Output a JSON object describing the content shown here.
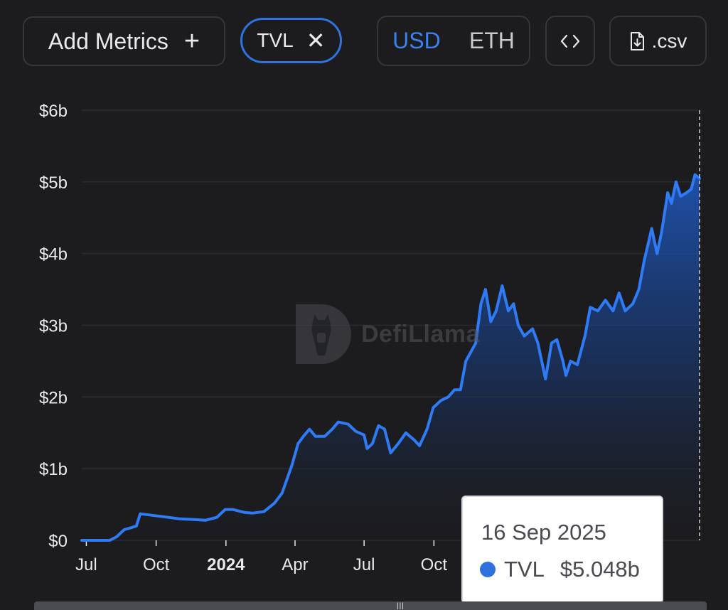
{
  "toolbar": {
    "add_metrics_label": "Add Metrics",
    "add_icon": "plus-icon",
    "tvl_chip_label": "TVL",
    "remove_icon": "close-icon",
    "currency_options": [
      "USD",
      "ETH"
    ],
    "currency_selected": "USD",
    "embed_icon": "code-brackets-icon",
    "csv_label": ".csv",
    "csv_icon": "file-download-icon"
  },
  "watermark": {
    "text": "DefiLlama"
  },
  "tooltip": {
    "date": "16 Sep 2025",
    "series": "TVL",
    "value": "$5.048b"
  },
  "colors": {
    "background": "#1c1c1f",
    "accent": "#3b82f0",
    "line": "#2f7bf5",
    "grid": "#2a2b30"
  },
  "chart_data": {
    "type": "area",
    "title": "",
    "xlabel": "",
    "ylabel": "",
    "ylim": [
      0,
      6
    ],
    "y_unit": "billion USD",
    "y_ticks": [
      {
        "value": 0,
        "label": "$0"
      },
      {
        "value": 1,
        "label": "$1b"
      },
      {
        "value": 2,
        "label": "$2b"
      },
      {
        "value": 3,
        "label": "$3b"
      },
      {
        "value": 4,
        "label": "$4b"
      },
      {
        "value": 5,
        "label": "$5b"
      },
      {
        "value": 6,
        "label": "$6b"
      }
    ],
    "x_range": [
      "2023-06-25",
      "2025-09-16"
    ],
    "x_ticks": [
      {
        "date": "2023-07-01",
        "label": "Jul",
        "bold": false
      },
      {
        "date": "2023-10-01",
        "label": "Oct",
        "bold": false
      },
      {
        "date": "2024-01-01",
        "label": "2024",
        "bold": true
      },
      {
        "date": "2024-04-01",
        "label": "Apr",
        "bold": false
      },
      {
        "date": "2024-07-01",
        "label": "Jul",
        "bold": false
      },
      {
        "date": "2024-10-01",
        "label": "Oct",
        "bold": false
      }
    ],
    "grid": "horizontal",
    "series": [
      {
        "name": "TVL",
        "points": [
          [
            "2023-06-25",
            0.0
          ],
          [
            "2023-07-15",
            0.0
          ],
          [
            "2023-08-01",
            0.0
          ],
          [
            "2023-08-10",
            0.05
          ],
          [
            "2023-08-20",
            0.15
          ],
          [
            "2023-08-30",
            0.18
          ],
          [
            "2023-09-05",
            0.2
          ],
          [
            "2023-09-10",
            0.37
          ],
          [
            "2023-09-25",
            0.35
          ],
          [
            "2023-10-10",
            0.33
          ],
          [
            "2023-11-01",
            0.3
          ],
          [
            "2023-11-20",
            0.29
          ],
          [
            "2023-12-05",
            0.28
          ],
          [
            "2023-12-20",
            0.32
          ],
          [
            "2023-12-31",
            0.43
          ],
          [
            "2024-01-10",
            0.43
          ],
          [
            "2024-01-25",
            0.39
          ],
          [
            "2024-02-05",
            0.38
          ],
          [
            "2024-02-20",
            0.4
          ],
          [
            "2024-03-05",
            0.52
          ],
          [
            "2024-03-15",
            0.66
          ],
          [
            "2024-03-28",
            1.05
          ],
          [
            "2024-04-05",
            1.35
          ],
          [
            "2024-04-12",
            1.45
          ],
          [
            "2024-04-20",
            1.55
          ],
          [
            "2024-04-28",
            1.45
          ],
          [
            "2024-05-10",
            1.45
          ],
          [
            "2024-05-20",
            1.55
          ],
          [
            "2024-05-28",
            1.65
          ],
          [
            "2024-06-10",
            1.62
          ],
          [
            "2024-06-20",
            1.52
          ],
          [
            "2024-07-01",
            1.47
          ],
          [
            "2024-07-05",
            1.28
          ],
          [
            "2024-07-12",
            1.35
          ],
          [
            "2024-07-20",
            1.6
          ],
          [
            "2024-07-28",
            1.55
          ],
          [
            "2024-08-05",
            1.22
          ],
          [
            "2024-08-15",
            1.35
          ],
          [
            "2024-08-25",
            1.5
          ],
          [
            "2024-09-05",
            1.4
          ],
          [
            "2024-09-12",
            1.32
          ],
          [
            "2024-09-22",
            1.55
          ],
          [
            "2024-09-30",
            1.85
          ],
          [
            "2024-10-10",
            1.95
          ],
          [
            "2024-10-20",
            2.0
          ],
          [
            "2024-10-28",
            2.1
          ],
          [
            "2024-11-05",
            2.1
          ],
          [
            "2024-11-12",
            2.5
          ],
          [
            "2024-11-25",
            2.75
          ],
          [
            "2024-12-02",
            3.3
          ],
          [
            "2024-12-08",
            3.5
          ],
          [
            "2024-12-15",
            3.05
          ],
          [
            "2024-12-22",
            3.2
          ],
          [
            "2024-12-30",
            3.55
          ],
          [
            "2025-01-07",
            3.2
          ],
          [
            "2025-01-14",
            3.3
          ],
          [
            "2025-01-20",
            3.0
          ],
          [
            "2025-01-28",
            2.85
          ],
          [
            "2025-02-08",
            2.95
          ],
          [
            "2025-02-15",
            2.75
          ],
          [
            "2025-02-25",
            2.25
          ],
          [
            "2025-03-05",
            2.75
          ],
          [
            "2025-03-12",
            2.8
          ],
          [
            "2025-03-20",
            2.5
          ],
          [
            "2025-03-24",
            2.3
          ],
          [
            "2025-03-30",
            2.5
          ],
          [
            "2025-04-08",
            2.45
          ],
          [
            "2025-04-18",
            2.85
          ],
          [
            "2025-04-25",
            3.25
          ],
          [
            "2025-05-05",
            3.2
          ],
          [
            "2025-05-15",
            3.35
          ],
          [
            "2025-05-25",
            3.2
          ],
          [
            "2025-06-02",
            3.45
          ],
          [
            "2025-06-10",
            3.2
          ],
          [
            "2025-06-20",
            3.3
          ],
          [
            "2025-06-28",
            3.5
          ],
          [
            "2025-07-05",
            3.9
          ],
          [
            "2025-07-15",
            4.35
          ],
          [
            "2025-07-22",
            4.0
          ],
          [
            "2025-07-28",
            4.3
          ],
          [
            "2025-08-05",
            4.85
          ],
          [
            "2025-08-10",
            4.7
          ],
          [
            "2025-08-16",
            5.0
          ],
          [
            "2025-08-22",
            4.8
          ],
          [
            "2025-08-30",
            4.85
          ],
          [
            "2025-09-05",
            4.9
          ],
          [
            "2025-09-10",
            5.1
          ],
          [
            "2025-09-16",
            5.048
          ]
        ]
      }
    ],
    "crosshair_date": "2025-09-16"
  }
}
